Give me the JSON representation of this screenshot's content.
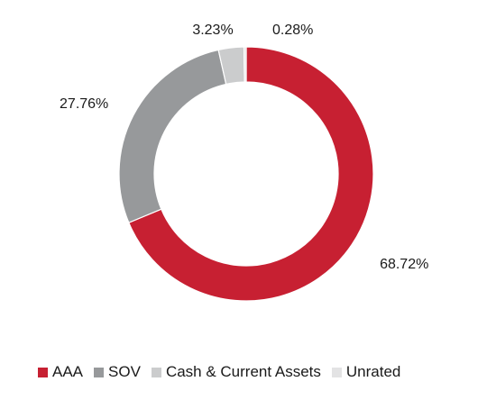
{
  "chart_data": {
    "type": "pie",
    "donut": true,
    "title": "",
    "categories": [
      "AAA",
      "SOV",
      "Cash & Current Assets",
      "Unrated"
    ],
    "values": [
      68.72,
      27.76,
      3.23,
      0.28
    ],
    "labels": [
      "68.72%",
      "27.76%",
      "3.23%",
      "0.28%"
    ],
    "colors": [
      "#c72032",
      "#97999b",
      "#cbcccd",
      "#e3e3e4"
    ],
    "legend_position": "bottom",
    "start_angle_deg": 0,
    "direction": "clockwise"
  },
  "legend": {
    "items": [
      {
        "label": "AAA",
        "color": "#c72032"
      },
      {
        "label": "SOV",
        "color": "#97999b"
      },
      {
        "label": "Cash & Current Assets",
        "color": "#cbcccd"
      },
      {
        "label": "Unrated",
        "color": "#e3e3e4"
      }
    ]
  }
}
